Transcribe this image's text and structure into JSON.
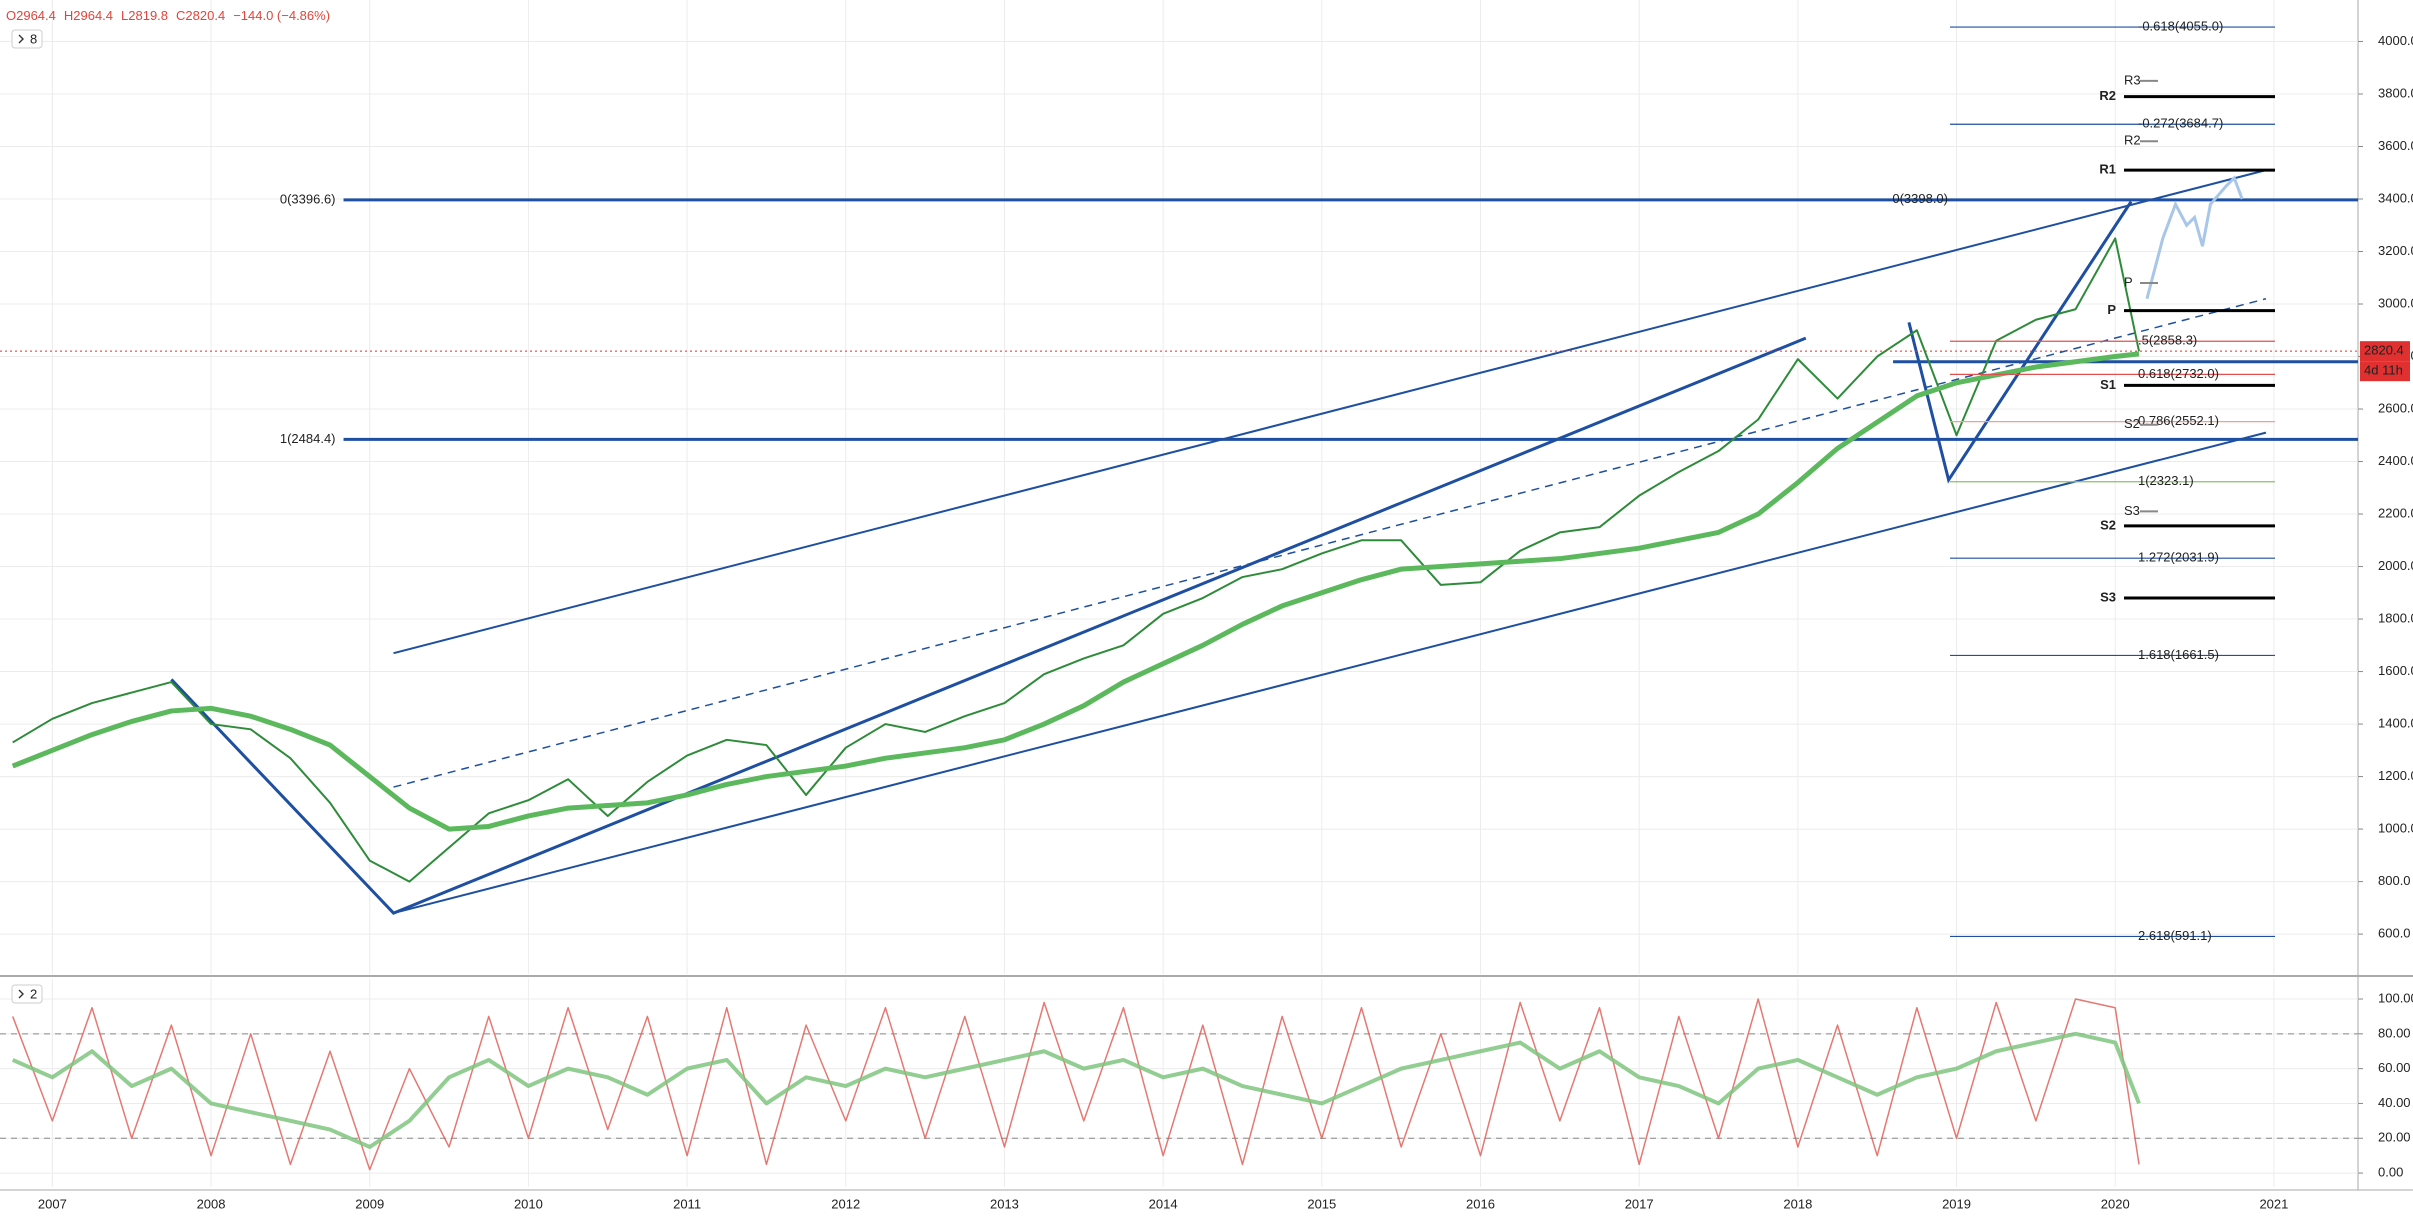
{
  "chart_data": [
    {
      "type": "line",
      "header": [
        "O2964.4",
        "H2964.4",
        "L2819.8",
        "C2820.4",
        "−144.0 (−4.86%)"
      ],
      "pane_label": "8",
      "x": [
        2006.75,
        2007.0,
        2007.25,
        2007.5,
        2007.75,
        2008.0,
        2008.25,
        2008.5,
        2008.75,
        2009.0,
        2009.25,
        2009.5,
        2009.75,
        2010.0,
        2010.25,
        2010.5,
        2010.75,
        2011.0,
        2011.25,
        2011.5,
        2011.75,
        2012.0,
        2012.25,
        2012.5,
        2012.75,
        2013.0,
        2013.25,
        2013.5,
        2013.75,
        2014.0,
        2014.25,
        2014.5,
        2014.75,
        2015.0,
        2015.25,
        2015.5,
        2015.75,
        2016.0,
        2016.25,
        2016.5,
        2016.75,
        2017.0,
        2017.25,
        2017.5,
        2017.75,
        2018.0,
        2018.25,
        2018.5,
        2018.75,
        2019.0,
        2019.25,
        2019.5,
        2019.75,
        2020.0,
        2020.15
      ],
      "xlim": [
        2006.67,
        2021.53
      ],
      "xticks": [
        2007,
        2008,
        2009,
        2010,
        2011,
        2012,
        2013,
        2014,
        2015,
        2016,
        2017,
        2018,
        2019,
        2020,
        2021
      ],
      "ylim": [
        448,
        4158
      ],
      "yticks": [
        {
          "value": 600,
          "label": "600.0"
        },
        {
          "value": 800,
          "label": "800.0"
        },
        {
          "value": 1000,
          "label": "1000.0"
        },
        {
          "value": 1200,
          "label": "1200.0"
        },
        {
          "value": 1400,
          "label": "1400.0"
        },
        {
          "value": 1600,
          "label": "1600.0"
        },
        {
          "value": 1800,
          "label": "1800.0"
        },
        {
          "value": 2000,
          "label": "2000.0"
        },
        {
          "value": 2200,
          "label": "2200.0"
        },
        {
          "value": 2400,
          "label": "2400.0"
        },
        {
          "value": 2600,
          "label": "2600.0"
        },
        {
          "value": 2800,
          "label": "2800.0"
        },
        {
          "value": 3000,
          "label": "3000.0"
        },
        {
          "value": 3200,
          "label": "3200.0"
        },
        {
          "value": 3400,
          "label": "3400.0"
        },
        {
          "value": 3600,
          "label": "3600.0"
        },
        {
          "value": 3800,
          "label": "3800.0"
        },
        {
          "value": 4000,
          "label": "4000.0"
        }
      ],
      "grid": true,
      "series": [
        {
          "color": "#2e8b3a",
          "width": 2,
          "values": [
            1330,
            1420,
            1480,
            1520,
            1560,
            1400,
            1380,
            1270,
            1100,
            880,
            800,
            930,
            1060,
            1110,
            1190,
            1050,
            1180,
            1280,
            1340,
            1320,
            1130,
            1310,
            1400,
            1370,
            1430,
            1480,
            1590,
            1650,
            1700,
            1820,
            1880,
            1960,
            1990,
            2050,
            2100,
            2100,
            1930,
            1940,
            2060,
            2130,
            2150,
            2270,
            2360,
            2440,
            2560,
            2790,
            2640,
            2800,
            2900,
            2500,
            2860,
            2940,
            2980,
            3250,
            2820
          ]
        },
        {
          "color": "#5cb85c",
          "width": 5,
          "values": [
            1240,
            1300,
            1360,
            1410,
            1450,
            1460,
            1430,
            1380,
            1320,
            1200,
            1080,
            1000,
            1010,
            1050,
            1080,
            1090,
            1100,
            1130,
            1170,
            1200,
            1220,
            1240,
            1270,
            1290,
            1310,
            1340,
            1400,
            1470,
            1560,
            1630,
            1700,
            1780,
            1850,
            1900,
            1950,
            1990,
            2000,
            2010,
            2020,
            2030,
            2050,
            2070,
            2100,
            2130,
            2200,
            2320,
            2450,
            2550,
            2650,
            2700,
            2730,
            2760,
            2780,
            2800,
            2810
          ]
        }
      ],
      "lines": [
        {
          "color": "#1e4fa0",
          "width": 2,
          "points": [
            [
              2009.15,
              1670
            ],
            [
              2020.95,
              3510
            ]
          ]
        },
        {
          "color": "#1e4fa0",
          "width": 2,
          "points": [
            [
              2009.15,
              680
            ],
            [
              2020.95,
              2510
            ]
          ]
        },
        {
          "color": "#1e4fa0",
          "width": 1.5,
          "dash": true,
          "points": [
            [
              2009.15,
              1160
            ],
            [
              2020.95,
              3020
            ]
          ]
        },
        {
          "color": "#1e4fa0",
          "width": 3,
          "points": [
            [
              2007.75,
              1570
            ],
            [
              2009.15,
              680
            ],
            [
              2018.05,
              2870
            ]
          ]
        },
        {
          "color": "#1e4fa0",
          "width": 3,
          "points": [
            [
              2018.7,
              2930
            ],
            [
              2018.95,
              2330
            ],
            [
              2020.1,
              3390
            ]
          ]
        },
        {
          "color": "#1e4fa0",
          "width": 3,
          "points": [
            [
              2018.6,
              2780
            ],
            [
              2021.53,
              2780
            ]
          ]
        }
      ],
      "projection": {
        "color": "#a8c6e8",
        "points": [
          [
            2020.2,
            3020
          ],
          [
            2020.3,
            3250
          ],
          [
            2020.38,
            3380
          ],
          [
            2020.45,
            3300
          ],
          [
            2020.5,
            3330
          ],
          [
            2020.55,
            3220
          ],
          [
            2020.6,
            3380
          ],
          [
            2020.7,
            3450
          ],
          [
            2020.75,
            3480
          ],
          [
            2020.8,
            3400
          ]
        ]
      },
      "fib_major": [
        {
          "label": "0(3396.6)",
          "value": 3396.6,
          "from": 2009.15
        },
        {
          "label": "1(2484.4)",
          "value": 2484.4,
          "from": 2009.15
        }
      ],
      "fib_levels": [
        {
          "label": "-0.618(4055.0)",
          "value": 4055.0,
          "color": "#1e4fa0"
        },
        {
          "label": "-0.272(3684.7)",
          "value": 3684.7,
          "color": "#1e4fa0"
        },
        {
          "label": ".5(2858.3)",
          "value": 2858.3,
          "color": "#e05050"
        },
        {
          "label": "0.618(2732.0)",
          "value": 2732.0,
          "color": "#e05050"
        },
        {
          "label": "0.786(2552.1)",
          "value": 2552.1,
          "color": "#f0a090"
        },
        {
          "label": "1(2323.1)",
          "value": 2323.1,
          "color": "#8bbf6a"
        },
        {
          "label": "1.272(2031.9)",
          "value": 2031.9,
          "color": "#1e4fa0"
        },
        {
          "label": "1.618(1661.5)",
          "value": 1661.5,
          "color": "#1e4fa0"
        },
        {
          "label": "2.618(591.1)",
          "value": 591.1,
          "color": "#1e4fa0"
        }
      ],
      "fib_note": {
        "label": "0(3398.0)",
        "value": 3398.0
      },
      "pivots": [
        {
          "label": "R2",
          "value": 3790
        },
        {
          "label": "R1",
          "value": 3510
        },
        {
          "label": "P",
          "value": 2975
        },
        {
          "label": "S1",
          "value": 2690
        },
        {
          "label": "S2",
          "value": 2155
        },
        {
          "label": "S3",
          "value": 1880
        }
      ],
      "pivots_prev": [
        {
          "label": "R3",
          "value": 3850
        },
        {
          "label": "R2",
          "value": 3620
        },
        {
          "label": "P",
          "value": 3080
        },
        {
          "label": "S2",
          "value": 2540
        },
        {
          "label": "S3",
          "value": 2210
        }
      ],
      "last": {
        "value": 2820.4,
        "label": "2820.4"
      },
      "countdown": "4d 11h"
    },
    {
      "type": "line",
      "pane_label": "2",
      "x": [
        2006.75,
        2007.0,
        2007.25,
        2007.5,
        2007.75,
        2008.0,
        2008.25,
        2008.5,
        2008.75,
        2009.0,
        2009.25,
        2009.5,
        2009.75,
        2010.0,
        2010.25,
        2010.5,
        2010.75,
        2011.0,
        2011.25,
        2011.5,
        2011.75,
        2012.0,
        2012.25,
        2012.5,
        2012.75,
        2013.0,
        2013.25,
        2013.5,
        2013.75,
        2014.0,
        2014.25,
        2014.5,
        2014.75,
        2015.0,
        2015.25,
        2015.5,
        2015.75,
        2016.0,
        2016.25,
        2016.5,
        2016.75,
        2017.0,
        2017.25,
        2017.5,
        2017.75,
        2018.0,
        2018.25,
        2018.5,
        2018.75,
        2019.0,
        2019.25,
        2019.5,
        2019.75,
        2020.0,
        2020.15
      ],
      "xlim": [
        2006.67,
        2021.53
      ],
      "ylim": [
        -8,
        111.5
      ],
      "yticks": [
        {
          "value": 0,
          "label": "0.00"
        },
        {
          "value": 20,
          "label": "20.00"
        },
        {
          "value": 40,
          "label": "40.00"
        },
        {
          "value": 60,
          "label": "60.00"
        },
        {
          "value": 80,
          "label": "80.00"
        },
        {
          "value": 100,
          "label": "100.00"
        }
      ],
      "levels": [
        80,
        20
      ],
      "series": [
        {
          "color": "#e0605a",
          "width": 1.5,
          "values": [
            90,
            30,
            95,
            20,
            85,
            10,
            80,
            5,
            70,
            2,
            60,
            15,
            90,
            20,
            95,
            25,
            90,
            10,
            95,
            5,
            85,
            30,
            95,
            20,
            90,
            15,
            98,
            30,
            95,
            10,
            85,
            5,
            90,
            20,
            95,
            15,
            80,
            10,
            98,
            30,
            95,
            5,
            90,
            20,
            100,
            15,
            85,
            10,
            95,
            20,
            98,
            30,
            100,
            95,
            5
          ]
        },
        {
          "color": "#7fc47f",
          "width": 4,
          "values": [
            65,
            55,
            70,
            50,
            60,
            40,
            35,
            30,
            25,
            15,
            30,
            55,
            65,
            50,
            60,
            55,
            45,
            60,
            65,
            40,
            55,
            50,
            60,
            55,
            60,
            65,
            70,
            60,
            65,
            55,
            60,
            50,
            45,
            40,
            50,
            60,
            65,
            70,
            75,
            60,
            70,
            55,
            50,
            40,
            60,
            65,
            55,
            45,
            55,
            60,
            70,
            75,
            80,
            75,
            40
          ]
        }
      ]
    }
  ]
}
